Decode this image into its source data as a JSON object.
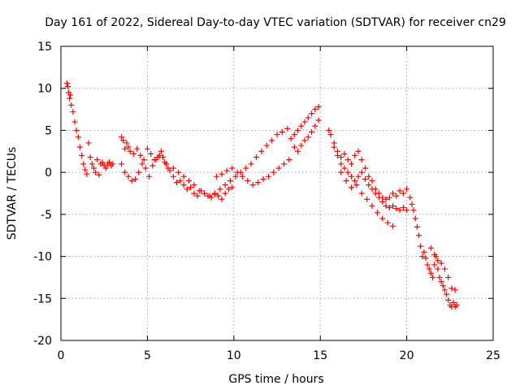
{
  "chart_data": {
    "type": "scatter",
    "title": "Day 161 of 2022, Sidereal Day-to-day VTEC variation (SDTVAR) for receiver cn29",
    "xlabel": "GPS time / hours",
    "ylabel": "SDTVAR / TECUs",
    "xlim": [
      0,
      25
    ],
    "ylim": [
      -20,
      15
    ],
    "xticks": [
      0,
      5,
      10,
      15,
      20,
      25
    ],
    "yticks": [
      -20,
      -15,
      -10,
      -5,
      0,
      5,
      10,
      15
    ],
    "xtick_labels": [
      "0",
      "5",
      "10",
      "15",
      "20",
      "25"
    ],
    "ytick_labels": [
      "-20",
      "-15",
      "-10",
      "-5",
      "0",
      "5",
      "10",
      "15"
    ],
    "grid": true,
    "marker": "plus",
    "color": "#ff0000",
    "series": [
      {
        "name": "SDTVAR",
        "x": [
          0.35,
          0.4,
          0.45,
          0.5,
          0.55,
          0.6,
          0.7,
          0.8,
          0.9,
          1.0,
          1.1,
          1.2,
          1.3,
          1.4,
          1.5,
          1.6,
          1.7,
          1.8,
          1.9,
          2.0,
          2.1,
          2.2,
          2.3,
          2.4,
          2.5,
          2.6,
          2.7,
          2.8,
          2.9,
          3.0,
          3.5,
          3.6,
          3.7,
          3.8,
          3.9,
          4.0,
          4.2,
          4.4,
          4.6,
          4.8,
          5.0,
          5.2,
          5.4,
          5.6,
          5.8,
          6.0,
          6.1,
          6.2,
          3.5,
          3.7,
          3.9,
          4.1,
          4.3,
          4.5,
          4.7,
          4.9,
          5.1,
          5.3,
          5.5,
          5.7,
          5.9,
          6.1,
          6.3,
          6.5,
          6.7,
          6.9,
          7.1,
          7.3,
          7.5,
          7.7,
          7.9,
          8.1,
          8.3,
          8.5,
          8.7,
          8.9,
          9.1,
          9.3,
          9.5,
          9.7,
          9.9,
          6.5,
          6.8,
          7.1,
          7.4,
          7.7,
          8.0,
          8.3,
          8.6,
          8.9,
          9.2,
          9.5,
          9.8,
          10.1,
          10.4,
          10.7,
          11.0,
          11.3,
          11.6,
          11.9,
          12.2,
          12.5,
          12.8,
          13.1,
          9.0,
          9.3,
          9.6,
          9.9,
          10.2,
          10.5,
          10.8,
          11.1,
          11.4,
          11.7,
          12.0,
          12.3,
          12.6,
          12.9,
          13.2,
          13.3,
          13.5,
          13.7,
          13.9,
          14.1,
          14.3,
          14.5,
          14.7,
          14.9,
          13.5,
          13.7,
          13.9,
          14.1,
          14.3,
          14.5,
          14.7,
          14.9,
          15.5,
          15.6,
          15.8,
          16.0,
          16.2,
          16.4,
          16.6,
          16.8,
          17.0,
          17.2,
          17.4,
          17.6,
          17.8,
          18.0,
          18.2,
          18.4,
          18.6,
          18.8,
          19.0,
          19.2,
          19.4,
          19.6,
          19.8,
          20.0,
          15.8,
          16.0,
          16.2,
          16.4,
          16.6,
          16.8,
          17.0,
          17.2,
          17.4,
          17.6,
          17.8,
          18.0,
          18.2,
          18.4,
          18.6,
          18.8,
          19.0,
          19.2,
          19.4,
          19.6,
          19.8,
          20.0,
          16.2,
          16.5,
          16.8,
          17.1,
          17.4,
          17.7,
          18.0,
          18.3,
          18.6,
          18.9,
          19.2,
          20.2,
          20.3,
          20.4,
          20.5,
          20.6,
          20.7,
          20.8,
          20.9,
          21.0,
          21.1,
          21.2,
          21.3,
          21.4,
          21.5,
          21.6,
          21.7,
          21.8,
          21.9,
          22.0,
          22.1,
          22.2,
          22.3,
          22.4,
          22.5,
          22.6,
          22.7,
          22.8,
          22.9,
          21.4,
          21.6,
          21.8,
          22.0,
          22.2,
          22.4,
          22.6,
          22.8
        ],
        "y": [
          10.6,
          10.2,
          9.5,
          8.8,
          9.2,
          8.0,
          7.2,
          6.0,
          5.0,
          4.2,
          3.0,
          2.0,
          1.0,
          0.3,
          -0.2,
          3.5,
          1.8,
          1.0,
          0.5,
          0.0,
          1.5,
          -0.3,
          1.0,
          1.2,
          0.8,
          0.5,
          1.0,
          1.2,
          0.8,
          1.0,
          4.2,
          3.8,
          2.8,
          3.5,
          3.0,
          2.5,
          2.2,
          2.8,
          2.0,
          1.5,
          2.8,
          2.2,
          1.5,
          1.8,
          2.5,
          1.2,
          1.0,
          0.5,
          1.0,
          0.0,
          -0.5,
          -1.0,
          -0.8,
          0.0,
          1.0,
          0.5,
          -0.5,
          0.8,
          1.5,
          2.0,
          1.8,
          1.0,
          0.2,
          -0.5,
          -1.2,
          -1.0,
          -1.5,
          -2.0,
          -1.8,
          -2.5,
          -2.8,
          -2.2,
          -2.5,
          -2.8,
          -3.0,
          -2.5,
          -2.8,
          -3.2,
          -2.5,
          -2.0,
          -1.8,
          0.5,
          0.0,
          -0.5,
          -1.0,
          -1.5,
          -2.2,
          -2.5,
          -2.8,
          -2.6,
          -2.0,
          -1.5,
          -1.0,
          -0.5,
          0.0,
          0.5,
          1.0,
          1.8,
          2.5,
          3.2,
          3.8,
          4.5,
          4.8,
          5.2,
          -0.5,
          -0.2,
          0.2,
          0.5,
          0.0,
          -0.5,
          -1.0,
          -1.5,
          -1.2,
          -0.8,
          -0.5,
          0.0,
          0.5,
          1.0,
          1.5,
          4.0,
          4.5,
          5.0,
          5.5,
          6.0,
          6.5,
          7.0,
          7.5,
          7.8,
          3.0,
          2.5,
          3.2,
          3.8,
          4.2,
          4.8,
          5.5,
          6.2,
          5.0,
          4.5,
          3.5,
          2.5,
          1.8,
          2.2,
          1.5,
          1.0,
          2.0,
          2.5,
          1.5,
          0.5,
          -0.5,
          -1.0,
          -2.0,
          -2.5,
          -3.0,
          -3.2,
          -3.0,
          -2.5,
          -2.8,
          -2.2,
          -2.5,
          -2.0,
          3.0,
          2.0,
          1.0,
          0.5,
          0.0,
          -0.5,
          -1.0,
          -0.5,
          0.0,
          -0.8,
          -1.5,
          -2.0,
          -2.5,
          -3.0,
          -3.5,
          -4.0,
          -4.2,
          -4.0,
          -4.3,
          -4.5,
          -4.2,
          -4.5,
          0.0,
          -1.0,
          -1.8,
          -1.5,
          -2.5,
          -3.2,
          -4.0,
          -4.8,
          -5.5,
          -6.0,
          -6.4,
          -3.0,
          -3.8,
          -4.5,
          -5.5,
          -6.5,
          -7.5,
          -8.8,
          -10.0,
          -9.5,
          -10.2,
          -11.0,
          -11.5,
          -12.0,
          -12.5,
          -11.0,
          -10.0,
          -11.5,
          -12.5,
          -13.0,
          -13.5,
          -14.0,
          -14.5,
          -15.2,
          -15.8,
          -16.0,
          -15.5,
          -16.0,
          -15.8,
          -9.0,
          -9.8,
          -10.5,
          -10.8,
          -11.5,
          -12.5,
          -13.8,
          -14.0
        ]
      }
    ]
  }
}
